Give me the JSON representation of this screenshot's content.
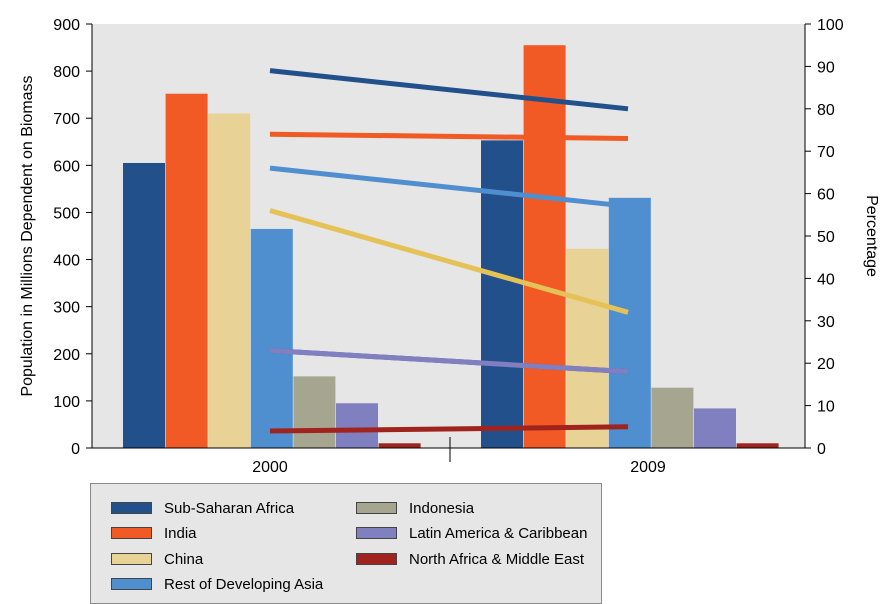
{
  "chart_data": {
    "type": "bar",
    "categories": [
      "2000",
      "2009"
    ],
    "ylabel": "Population in Millions Dependent on Biomass",
    "ylabel_right": "Percentage",
    "ylim": [
      0,
      900
    ],
    "yticks": [
      0,
      100,
      200,
      300,
      400,
      500,
      600,
      700,
      800,
      900
    ],
    "ylim_right": [
      0,
      100
    ],
    "yticks_right": [
      0,
      10,
      20,
      30,
      40,
      50,
      60,
      70,
      80,
      90,
      100
    ],
    "grid": false,
    "legend_position": "bottom-left",
    "series": [
      {
        "name": "Sub-Saharan Africa",
        "color": "#22508a",
        "values": [
          605,
          653
        ],
        "percentage": [
          89,
          80
        ]
      },
      {
        "name": "India",
        "color": "#f15a24",
        "values": [
          752,
          855
        ],
        "percentage": [
          74,
          73
        ]
      },
      {
        "name": "China",
        "color": "#e8d295",
        "values": [
          710,
          423
        ],
        "percentage": [
          56,
          32
        ]
      },
      {
        "name": "Rest of Developing Asia",
        "color": "#4f8fd0",
        "values": [
          465,
          531
        ],
        "percentage": [
          66,
          57
        ]
      },
      {
        "name": "Indonesia",
        "color": "#a5a590",
        "values": [
          152,
          128
        ],
        "percentage": [
          23,
          18
        ]
      },
      {
        "name": "Latin America & Caribbean",
        "color": "#8080c0",
        "values": [
          95,
          84
        ],
        "percentage": [
          23,
          18
        ]
      },
      {
        "name": "North Africa & Middle East",
        "color": "#a0231e",
        "values": [
          10,
          10
        ],
        "percentage": [
          4,
          5
        ]
      }
    ]
  },
  "line_colors": {
    "Sub-Saharan Africa": "#22508a",
    "India": "#f15a24",
    "China": "#e5c257",
    "Rest of Developing Asia": "#4f8fd0",
    "Indonesia": "#7a3a9a",
    "Latin America & Caribbean": "#8080c0",
    "North Africa & Middle East": "#a0231e"
  }
}
